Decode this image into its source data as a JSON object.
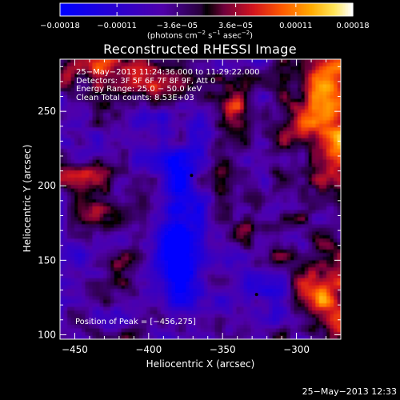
{
  "chart_data": {
    "type": "heatmap",
    "title": "Reconstructed RHESSI Image",
    "xlabel": "Heliocentric X (arcsec)",
    "ylabel": "Heliocentric Y (arcsec)",
    "xlim": [
      -460,
      -270
    ],
    "ylim": [
      97,
      285
    ],
    "xticks": [
      -450,
      -400,
      -350,
      -300
    ],
    "xtick_labels": [
      "−450",
      "−400",
      "−350",
      "−300"
    ],
    "yticks": [
      100,
      150,
      200,
      250
    ],
    "ytick_labels": [
      "100",
      "150",
      "200",
      "250"
    ],
    "grid": false,
    "colorbar": {
      "range": [
        -0.00018,
        0.00018
      ],
      "ticks": [
        -0.00018,
        -0.00011,
        -3.6e-05,
        3.6e-05,
        0.00011,
        0.00018
      ],
      "tick_labels": [
        "−0.00018",
        "−0.00011",
        "−3.6e−05",
        "3.6e−05",
        "0.00011",
        "0.00018"
      ],
      "units_main": "(photons cm",
      "units_exp1": "−2",
      "units_mid": " s",
      "units_exp2": "−1",
      "units_end": " asec",
      "units_exp3": "−2",
      "units_close": ")",
      "colormap": "rainbow + black",
      "colors": [
        "#0000ff",
        "#3a00c0",
        "#5a00a0",
        "#8a1090",
        "#d02020",
        "#ff5000",
        "#ffa000",
        "#ffe050",
        "#ffffff"
      ]
    },
    "annotations": {
      "time": "25−May−2013 11:24:36.000 to 11:29:22.000",
      "detectors": "Detectors: 3F 5F 6F 7F 8F 9F, Att 0",
      "energy": "Energy Range: 25.0 − 50.0 keV",
      "clean": "Clean    Total counts: 8.53E+03",
      "peak": "Position of Peak = [−456,275]"
    },
    "peak_position": [
      -456,
      275
    ]
  },
  "timestamp": "25−May−2013 12:33"
}
